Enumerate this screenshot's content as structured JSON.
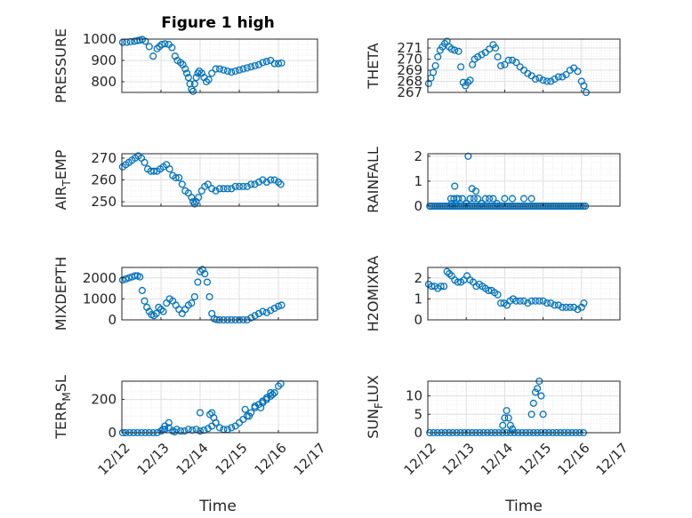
{
  "figure": {
    "title": "Figure 1 high",
    "xlabel": "Time",
    "marker_color": "#0072bd",
    "grid": true
  },
  "chart_data": [
    {
      "type": "scatter",
      "title": "Figure 1 high",
      "ylabel": "PRESSURE",
      "xlabel": "",
      "xlim": [
        "12/12",
        "12/17"
      ],
      "ylim": [
        750,
        1000
      ],
      "yticks": [
        800,
        900,
        1000
      ],
      "xticks": [
        "12/12",
        "12/13",
        "12/14",
        "12/15",
        "12/16",
        "12/17"
      ],
      "x": [
        0.02,
        0.12,
        0.22,
        0.32,
        0.4,
        0.46,
        0.52,
        0.6,
        0.7,
        0.8,
        0.9,
        0.96,
        1.02,
        1.1,
        1.2,
        1.28,
        1.36,
        1.42,
        1.5,
        1.56,
        1.62,
        1.66,
        1.7,
        1.74,
        1.78,
        1.82,
        1.86,
        1.9,
        1.94,
        1.98,
        2.04,
        2.1,
        2.16,
        2.22,
        2.3,
        2.4,
        2.5,
        2.6,
        2.7,
        2.8,
        2.9,
        3.0,
        3.1,
        3.2,
        3.3,
        3.4,
        3.5,
        3.6,
        3.7,
        3.8,
        3.9,
        4.0,
        4.08
      ],
      "y": [
        985,
        985,
        988,
        990,
        993,
        995,
        998,
        990,
        965,
        920,
        955,
        965,
        975,
        978,
        975,
        960,
        920,
        900,
        890,
        880,
        860,
        840,
        820,
        790,
        765,
        755,
        790,
        820,
        840,
        850,
        840,
        820,
        800,
        810,
        840,
        860,
        860,
        855,
        850,
        845,
        850,
        855,
        860,
        865,
        870,
        875,
        880,
        890,
        895,
        900,
        885,
        885,
        888
      ]
    },
    {
      "type": "scatter",
      "title": "",
      "ylabel": "THETA",
      "xlabel": "",
      "xlim": [
        "12/12",
        "12/17"
      ],
      "ylim": [
        267,
        271.8
      ],
      "yticks": [
        267,
        268,
        269,
        270,
        271
      ],
      "xticks": [
        "12/12",
        "12/13",
        "12/14",
        "12/15",
        "12/16",
        "12/17"
      ],
      "x": [
        0.02,
        0.08,
        0.14,
        0.2,
        0.26,
        0.32,
        0.38,
        0.44,
        0.5,
        0.56,
        0.62,
        0.7,
        0.8,
        0.86,
        0.92,
        0.98,
        1.04,
        1.1,
        1.16,
        1.22,
        1.3,
        1.4,
        1.5,
        1.6,
        1.7,
        1.76,
        1.82,
        1.9,
        2.0,
        2.1,
        2.2,
        2.3,
        2.4,
        2.5,
        2.6,
        2.7,
        2.8,
        2.9,
        3.0,
        3.1,
        3.2,
        3.3,
        3.4,
        3.5,
        3.6,
        3.7,
        3.8,
        3.9,
        4.0,
        4.06,
        4.12
      ],
      "y": [
        267.8,
        268.3,
        268.8,
        269.4,
        270.2,
        270.8,
        271.1,
        271.4,
        271.6,
        271.1,
        270.9,
        270.8,
        270.7,
        269.3,
        267.9,
        267.6,
        267.9,
        268.1,
        269.5,
        270.0,
        270.2,
        270.4,
        270.6,
        270.9,
        271.3,
        271.0,
        270.2,
        269.4,
        269.5,
        269.9,
        269.9,
        269.7,
        269.3,
        269.0,
        268.7,
        268.5,
        268.2,
        268.3,
        268.1,
        268.0,
        268.0,
        268.2,
        268.4,
        268.4,
        268.6,
        269.0,
        269.2,
        268.9,
        268.0,
        267.6,
        267.0
      ]
    },
    {
      "type": "scatter",
      "title": "",
      "ylabel": "AIR",
      "ylabel_sub": "T",
      "ylabel_rest": "EMP",
      "xlabel": "",
      "xlim": [
        "12/12",
        "12/17"
      ],
      "ylim": [
        248,
        272
      ],
      "yticks": [
        250,
        260,
        270
      ],
      "xticks": [
        "12/12",
        "12/13",
        "12/14",
        "12/15",
        "12/16",
        "12/17"
      ],
      "x": [
        0.02,
        0.1,
        0.18,
        0.26,
        0.34,
        0.42,
        0.5,
        0.58,
        0.66,
        0.74,
        0.82,
        0.9,
        0.98,
        1.06,
        1.14,
        1.22,
        1.3,
        1.38,
        1.46,
        1.54,
        1.62,
        1.7,
        1.78,
        1.82,
        1.86,
        1.9,
        1.96,
        2.04,
        2.12,
        2.2,
        2.3,
        2.4,
        2.5,
        2.6,
        2.7,
        2.8,
        2.9,
        3.0,
        3.1,
        3.2,
        3.3,
        3.4,
        3.5,
        3.6,
        3.7,
        3.8,
        3.9,
        4.0,
        4.06
      ],
      "y": [
        266,
        267,
        268,
        269,
        270,
        271,
        270,
        268,
        265,
        264,
        264,
        264,
        265,
        266,
        267,
        265,
        262,
        261,
        261,
        258,
        255,
        254,
        252,
        250,
        249,
        250,
        252,
        255,
        257,
        258,
        256,
        255,
        256,
        256,
        256,
        256,
        257,
        257,
        257,
        257,
        258,
        258,
        259,
        260,
        259,
        260,
        260,
        259,
        258
      ]
    },
    {
      "type": "scatter",
      "title": "",
      "ylabel": "RAINFALL",
      "xlabel": "",
      "xlim": [
        "12/12",
        "12/17"
      ],
      "ylim": [
        0,
        2.1
      ],
      "yticks": [
        0,
        1,
        2
      ],
      "xticks": [
        "12/12",
        "12/13",
        "12/14",
        "12/15",
        "12/16",
        "12/17"
      ],
      "x": [
        0.05,
        0.1,
        0.15,
        0.2,
        0.25,
        0.3,
        0.35,
        0.4,
        0.45,
        0.5,
        0.55,
        0.6,
        0.65,
        0.7,
        0.75,
        0.8,
        0.85,
        0.9,
        0.95,
        1.0,
        1.05,
        1.1,
        1.15,
        1.2,
        1.25,
        1.3,
        1.35,
        1.4,
        1.45,
        1.5,
        1.55,
        1.6,
        1.65,
        1.7,
        1.75,
        1.8,
        1.85,
        1.9,
        1.95,
        2.0,
        2.05,
        2.1,
        2.15,
        2.2,
        2.25,
        2.3,
        2.35,
        2.4,
        2.45,
        2.5,
        2.55,
        2.6,
        2.65,
        2.7,
        2.75,
        2.8,
        2.85,
        2.9,
        2.95,
        3.0,
        3.05,
        3.1,
        3.15,
        3.2,
        3.25,
        3.3,
        3.35,
        3.4,
        3.45,
        3.5,
        3.55,
        3.6,
        3.65,
        3.7,
        3.75,
        3.8,
        3.85,
        3.9,
        3.95,
        4.0,
        4.05,
        4.1,
        0.6,
        0.68,
        0.72,
        0.8,
        0.9,
        1.0,
        1.1,
        1.2,
        1.3,
        1.4,
        1.5,
        1.6,
        1.7,
        1.8,
        2.0,
        2.2,
        2.5,
        2.7,
        0.7,
        1.05,
        1.25,
        0.62,
        1.15,
        0.75
      ],
      "y": [
        0,
        0,
        0,
        0,
        0,
        0,
        0,
        0,
        0,
        0,
        0,
        0,
        0,
        0,
        0,
        0,
        0,
        0,
        0,
        0,
        0,
        0,
        0,
        0,
        0,
        0,
        0,
        0,
        0,
        0,
        0,
        0,
        0,
        0,
        0,
        0,
        0,
        0,
        0,
        0,
        0,
        0,
        0,
        0,
        0,
        0,
        0,
        0,
        0,
        0,
        0,
        0,
        0,
        0,
        0,
        0,
        0,
        0,
        0,
        0,
        0,
        0,
        0,
        0,
        0,
        0,
        0,
        0,
        0,
        0,
        0,
        0,
        0,
        0,
        0,
        0,
        0,
        0,
        0,
        0,
        0,
        0,
        0.3,
        0.3,
        0.1,
        0.3,
        0.3,
        0.1,
        0.3,
        0.3,
        0.3,
        0.1,
        0.3,
        0.3,
        0.3,
        0.1,
        0.3,
        0.3,
        0.3,
        0.3,
        0.8,
        2.0,
        0.6,
        0.1,
        0.7,
        0.3
      ]
    },
    {
      "type": "scatter",
      "title": "",
      "ylabel": "MIXDEPTH",
      "xlabel": "",
      "xlim": [
        "12/12",
        "12/17"
      ],
      "ylim": [
        0,
        2500
      ],
      "yticks": [
        0,
        1000,
        2000
      ],
      "xticks": [
        "12/12",
        "12/13",
        "12/14",
        "12/15",
        "12/16",
        "12/17"
      ],
      "x": [
        0.02,
        0.1,
        0.18,
        0.26,
        0.34,
        0.4,
        0.46,
        0.52,
        0.58,
        0.64,
        0.7,
        0.76,
        0.82,
        0.88,
        0.94,
        1.0,
        1.06,
        1.14,
        1.22,
        1.3,
        1.38,
        1.46,
        1.54,
        1.62,
        1.7,
        1.78,
        1.86,
        1.94,
        2.0,
        2.06,
        2.12,
        2.18,
        2.24,
        2.3,
        2.36,
        2.42,
        2.5,
        2.6,
        2.7,
        2.8,
        2.9,
        3.0,
        3.1,
        3.2,
        3.3,
        3.4,
        3.5,
        3.6,
        3.7,
        3.8,
        3.9,
        4.0,
        4.08
      ],
      "y": [
        1900,
        1950,
        2000,
        2050,
        2100,
        2100,
        2050,
        1400,
        900,
        600,
        400,
        250,
        200,
        300,
        600,
        500,
        400,
        800,
        1000,
        900,
        700,
        500,
        300,
        500,
        700,
        800,
        1100,
        1800,
        2300,
        2400,
        2200,
        1800,
        1100,
        300,
        50,
        10,
        0,
        0,
        0,
        0,
        0,
        0,
        0,
        0,
        100,
        200,
        300,
        400,
        350,
        450,
        550,
        650,
        700
      ]
    },
    {
      "type": "scatter",
      "title": "",
      "ylabel": "H2OMIXRA",
      "xlabel": "",
      "xlim": [
        "12/12",
        "12/17"
      ],
      "ylim": [
        0,
        2.5
      ],
      "yticks": [
        0,
        1,
        2
      ],
      "xticks": [
        "12/12",
        "12/13",
        "12/14",
        "12/15",
        "12/16",
        "12/17"
      ],
      "x": [
        0.02,
        0.1,
        0.18,
        0.26,
        0.34,
        0.42,
        0.5,
        0.56,
        0.62,
        0.7,
        0.78,
        0.86,
        0.94,
        1.02,
        1.1,
        1.18,
        1.26,
        1.34,
        1.42,
        1.5,
        1.58,
        1.66,
        1.74,
        1.82,
        1.9,
        1.98,
        2.06,
        2.14,
        2.22,
        2.3,
        2.4,
        2.5,
        2.6,
        2.7,
        2.8,
        2.9,
        3.0,
        3.1,
        3.2,
        3.3,
        3.4,
        3.5,
        3.6,
        3.7,
        3.8,
        3.9,
        4.0,
        4.06
      ],
      "y": [
        1.7,
        1.6,
        1.6,
        1.5,
        1.6,
        1.6,
        2.3,
        2.2,
        2.1,
        1.9,
        1.8,
        1.8,
        1.9,
        2.1,
        1.9,
        1.8,
        1.6,
        1.7,
        1.6,
        1.5,
        1.4,
        1.4,
        1.3,
        1.2,
        0.8,
        0.8,
        0.7,
        0.9,
        1.0,
        0.9,
        0.9,
        0.9,
        0.8,
        0.9,
        0.9,
        0.9,
        0.9,
        0.8,
        0.8,
        0.7,
        0.7,
        0.6,
        0.6,
        0.6,
        0.6,
        0.5,
        0.6,
        0.8
      ]
    },
    {
      "type": "scatter",
      "title": "",
      "ylabel": "TERR",
      "ylabel_sub": "M",
      "ylabel_rest": "SL",
      "xlabel": "Time",
      "xlim": [
        "12/12",
        "12/17"
      ],
      "ylim": [
        0,
        310
      ],
      "yticks": [
        0,
        200
      ],
      "xticks": [
        "12/12",
        "12/13",
        "12/14",
        "12/15",
        "12/16",
        "12/17"
      ],
      "x": [
        0.02,
        0.1,
        0.2,
        0.3,
        0.4,
        0.5,
        0.6,
        0.7,
        0.8,
        0.9,
        1.0,
        1.1,
        1.2,
        1.3,
        1.4,
        1.5,
        1.6,
        1.7,
        1.8,
        1.9,
        2.0,
        2.1,
        2.2,
        2.3,
        2.4,
        2.5,
        2.6,
        2.7,
        2.8,
        2.9,
        3.0,
        3.1,
        3.2,
        3.3,
        3.4,
        3.5,
        3.6,
        3.7,
        3.8,
        3.9,
        4.0,
        4.06,
        1.05,
        1.1,
        1.2,
        1.35,
        2.0,
        2.25,
        2.3,
        2.35,
        2.4,
        3.15,
        3.25,
        3.4,
        3.55,
        3.6,
        3.7,
        3.8,
        3.85
      ],
      "y": [
        0,
        0,
        0,
        0,
        0,
        0,
        0,
        0,
        0,
        0,
        10,
        20,
        30,
        10,
        20,
        10,
        10,
        20,
        15,
        20,
        10,
        15,
        25,
        40,
        60,
        30,
        20,
        20,
        30,
        40,
        60,
        80,
        100,
        120,
        150,
        170,
        190,
        200,
        220,
        240,
        280,
        295,
        20,
        40,
        60,
        5,
        120,
        110,
        120,
        90,
        60,
        140,
        100,
        160,
        150,
        180,
        210,
        240,
        230
      ]
    },
    {
      "type": "scatter",
      "title": "",
      "ylabel": "SUN",
      "ylabel_sub": "F",
      "ylabel_rest": "LUX",
      "xlabel": "Time",
      "xlim": [
        "12/12",
        "12/17"
      ],
      "ylim": [
        0,
        14
      ],
      "yticks": [
        0,
        5,
        10
      ],
      "xticks": [
        "12/12",
        "12/13",
        "12/14",
        "12/15",
        "12/16",
        "12/17"
      ],
      "x": [
        0.05,
        0.15,
        0.25,
        0.35,
        0.45,
        0.55,
        0.65,
        0.75,
        0.85,
        0.95,
        1.05,
        1.15,
        1.25,
        1.35,
        1.45,
        1.55,
        1.65,
        1.75,
        1.85,
        1.95,
        2.05,
        2.15,
        2.25,
        2.35,
        2.45,
        2.55,
        2.65,
        2.75,
        2.85,
        2.95,
        3.05,
        3.15,
        3.25,
        3.35,
        3.45,
        3.55,
        3.65,
        3.75,
        3.85,
        3.95,
        4.05,
        1.95,
        2.0,
        2.05,
        2.1,
        2.15,
        2.2,
        2.7,
        2.75,
        2.8,
        2.85,
        2.9,
        2.95,
        3.0
      ],
      "y": [
        0,
        0,
        0,
        0,
        0,
        0,
        0,
        0,
        0,
        0,
        0,
        0,
        0,
        0,
        0,
        0,
        0,
        0,
        0,
        0,
        0,
        0,
        0,
        0,
        0,
        0,
        0,
        0,
        0,
        0,
        0,
        0,
        0,
        0,
        0,
        0,
        0,
        0,
        0,
        0,
        0,
        2,
        4,
        6,
        4,
        2,
        1,
        5,
        8,
        11,
        12,
        14,
        10,
        5
      ]
    }
  ]
}
